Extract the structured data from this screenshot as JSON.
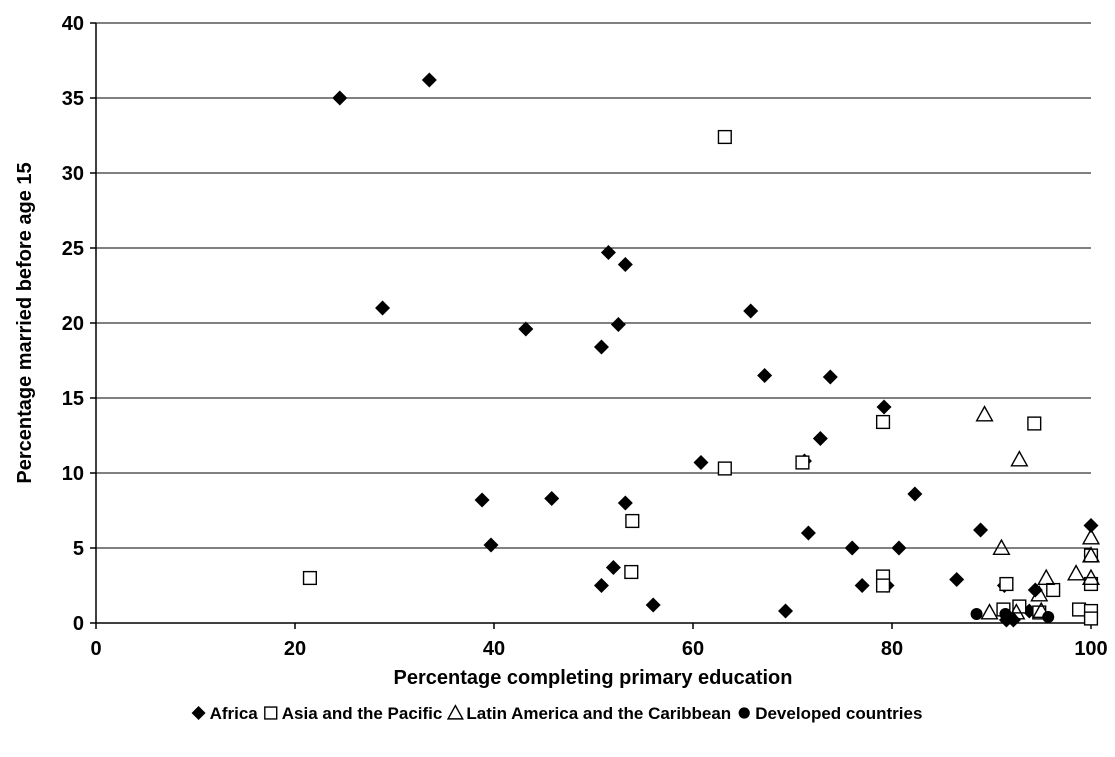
{
  "chart_data": {
    "type": "scatter",
    "title": "",
    "xlabel": "Percentage completing primary education",
    "ylabel": "Percentage married before age 15",
    "xlim": [
      0,
      100
    ],
    "ylim": [
      0,
      40
    ],
    "x_ticks": [
      0,
      20,
      40,
      60,
      80,
      100
    ],
    "y_ticks": [
      0,
      5,
      10,
      15,
      20,
      25,
      30,
      35,
      40
    ],
    "x_tick_labels": [
      "0",
      "20",
      "40",
      "60",
      "80",
      "100"
    ],
    "y_tick_labels": [
      "0",
      "5",
      "10",
      "15",
      "20",
      "25",
      "30",
      "35",
      "40"
    ],
    "grid": "horizontal",
    "legend_position": "bottom",
    "series": [
      {
        "name": "Africa",
        "marker": "diamond",
        "color": "#000000",
        "points": [
          [
            24.5,
            35.0
          ],
          [
            33.5,
            36.2
          ],
          [
            28.8,
            21.0
          ],
          [
            43.2,
            19.6
          ],
          [
            51.5,
            24.7
          ],
          [
            53.2,
            23.9
          ],
          [
            52.5,
            19.9
          ],
          [
            50.8,
            18.4
          ],
          [
            65.8,
            20.8
          ],
          [
            67.2,
            16.5
          ],
          [
            73.8,
            16.4
          ],
          [
            79.2,
            14.4
          ],
          [
            72.8,
            12.3
          ],
          [
            60.8,
            10.7
          ],
          [
            71.2,
            10.8
          ],
          [
            82.3,
            8.6
          ],
          [
            38.8,
            8.2
          ],
          [
            45.8,
            8.3
          ],
          [
            53.2,
            8.0
          ],
          [
            39.7,
            5.2
          ],
          [
            71.6,
            6.0
          ],
          [
            76.0,
            5.0
          ],
          [
            80.7,
            5.0
          ],
          [
            88.9,
            6.2
          ],
          [
            100.0,
            6.5
          ],
          [
            52.0,
            3.7
          ],
          [
            50.8,
            2.5
          ],
          [
            56.0,
            1.2
          ],
          [
            69.3,
            0.8
          ],
          [
            77.0,
            2.5
          ],
          [
            79.5,
            2.5
          ],
          [
            86.5,
            2.9
          ],
          [
            91.3,
            2.5
          ],
          [
            93.8,
            0.8
          ],
          [
            94.4,
            2.2
          ],
          [
            91.5,
            0.2
          ],
          [
            92.2,
            0.2
          ]
        ]
      },
      {
        "name": "Asia and the Pacific",
        "marker": "square",
        "color": "#000000",
        "points": [
          [
            21.5,
            3.0
          ],
          [
            63.2,
            32.4
          ],
          [
            63.2,
            10.3
          ],
          [
            71.0,
            10.7
          ],
          [
            79.1,
            13.4
          ],
          [
            94.3,
            13.3
          ],
          [
            53.9,
            6.8
          ],
          [
            53.8,
            3.4
          ],
          [
            79.1,
            3.1
          ],
          [
            79.1,
            2.5
          ],
          [
            91.5,
            2.6
          ],
          [
            92.8,
            1.1
          ],
          [
            96.2,
            2.2
          ],
          [
            94.8,
            0.7
          ],
          [
            98.8,
            0.9
          ],
          [
            100.0,
            4.5
          ],
          [
            100.0,
            2.6
          ],
          [
            100.0,
            0.8
          ],
          [
            100.0,
            0.3
          ],
          [
            91.2,
            0.9
          ]
        ]
      },
      {
        "name": "Latin America and the Caribbean",
        "marker": "triangle",
        "color": "#000000",
        "points": [
          [
            89.3,
            13.9
          ],
          [
            92.8,
            10.9
          ],
          [
            91.0,
            5.0
          ],
          [
            95.5,
            3.0
          ],
          [
            98.5,
            3.3
          ],
          [
            100.0,
            5.7
          ],
          [
            100.0,
            4.5
          ],
          [
            100.0,
            3.0
          ],
          [
            94.8,
            1.9
          ],
          [
            89.8,
            0.7
          ],
          [
            92.5,
            0.7
          ],
          [
            95.0,
            0.8
          ]
        ]
      },
      {
        "name": "Developed countries",
        "marker": "circle",
        "color": "#000000",
        "points": [
          [
            88.5,
            0.6
          ],
          [
            91.4,
            0.6
          ],
          [
            92.0,
            0.3
          ],
          [
            95.7,
            0.4
          ]
        ]
      }
    ]
  },
  "legend": {
    "items": [
      {
        "name": "Africa",
        "marker": "diamond"
      },
      {
        "name": "Asia and the Pacific",
        "marker": "square"
      },
      {
        "name": "Latin America and the Caribbean",
        "marker": "triangle"
      },
      {
        "name": "Developed countries",
        "marker": "circle"
      }
    ]
  },
  "colors": {
    "axis": "#000000",
    "grid": "#000000",
    "background": "#ffffff"
  }
}
